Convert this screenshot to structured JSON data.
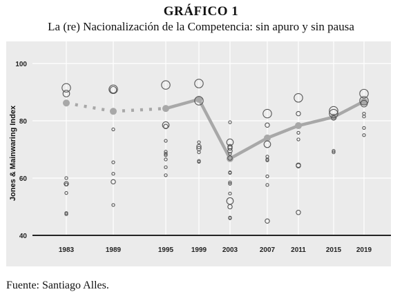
{
  "figure": {
    "title": "GRÁFICO 1",
    "subtitle": "La (re) Nacionalización de la Competencia: sin apuro y sin pausa",
    "source": "Fuente: Santiago Alles."
  },
  "chart_data": {
    "type": "scatter",
    "ylabel": "Jones & Mainwaring Index",
    "xlabel": "",
    "categories": [
      "1983",
      "1989",
      "1995",
      "1999",
      "2003",
      "2007",
      "2011",
      "2015",
      "2019"
    ],
    "ylim": [
      40,
      105
    ],
    "yticks": [
      40,
      60,
      80,
      100
    ],
    "grid": true,
    "colors": {
      "panel": "#ebebeb",
      "grid": "#ffffff",
      "trend": "#a8a8a8",
      "points": "#555555"
    },
    "trend": {
      "values": [
        86.2,
        83.3,
        84.3,
        87.5,
        66.8,
        74.0,
        78.3,
        81.3,
        86.8
      ],
      "dotted_segments": [
        [
          0,
          1
        ],
        [
          1,
          2
        ]
      ]
    },
    "points": [
      {
        "x": "1983",
        "y": 91.5,
        "size": "large"
      },
      {
        "x": "1983",
        "y": 89.5,
        "size": "medium"
      },
      {
        "x": "1983",
        "y": 60.0,
        "size": "tiny"
      },
      {
        "x": "1983",
        "y": 58.0,
        "size": "small"
      },
      {
        "x": "1983",
        "y": 57.8,
        "size": "tiny"
      },
      {
        "x": "1983",
        "y": 54.8,
        "size": "tiny"
      },
      {
        "x": "1983",
        "y": 47.8,
        "size": "tiny"
      },
      {
        "x": "1983",
        "y": 47.4,
        "size": "tiny"
      },
      {
        "x": "1989",
        "y": 91.0,
        "size": "large"
      },
      {
        "x": "1989",
        "y": 90.8,
        "size": "medium"
      },
      {
        "x": "1989",
        "y": 77.0,
        "size": "tiny"
      },
      {
        "x": "1989",
        "y": 65.5,
        "size": "tiny"
      },
      {
        "x": "1989",
        "y": 61.5,
        "size": "tiny"
      },
      {
        "x": "1989",
        "y": 58.7,
        "size": "small"
      },
      {
        "x": "1989",
        "y": 50.6,
        "size": "tiny"
      },
      {
        "x": "1995",
        "y": 92.5,
        "size": "large"
      },
      {
        "x": "1995",
        "y": 78.5,
        "size": "medium"
      },
      {
        "x": "1995",
        "y": 78.0,
        "size": "small"
      },
      {
        "x": "1995",
        "y": 73.0,
        "size": "tiny"
      },
      {
        "x": "1995",
        "y": 69.2,
        "size": "tiny"
      },
      {
        "x": "1995",
        "y": 68.5,
        "size": "tiny"
      },
      {
        "x": "1995",
        "y": 68.0,
        "size": "tiny"
      },
      {
        "x": "1995",
        "y": 66.5,
        "size": "tiny"
      },
      {
        "x": "1995",
        "y": 63.8,
        "size": "tiny"
      },
      {
        "x": "1995",
        "y": 61.0,
        "size": "tiny"
      },
      {
        "x": "1999",
        "y": 93.0,
        "size": "large"
      },
      {
        "x": "1999",
        "y": 87.0,
        "size": "large"
      },
      {
        "x": "1999",
        "y": 72.5,
        "size": "tiny"
      },
      {
        "x": "1999",
        "y": 71.0,
        "size": "small"
      },
      {
        "x": "1999",
        "y": 70.3,
        "size": "small"
      },
      {
        "x": "1999",
        "y": 69.0,
        "size": "tiny"
      },
      {
        "x": "1999",
        "y": 66.0,
        "size": "tiny"
      },
      {
        "x": "1999",
        "y": 65.7,
        "size": "tiny"
      },
      {
        "x": "2003",
        "y": 79.5,
        "size": "tiny"
      },
      {
        "x": "2003",
        "y": 72.5,
        "size": "medium"
      },
      {
        "x": "2003",
        "y": 71.0,
        "size": "small"
      },
      {
        "x": "2003",
        "y": 70.5,
        "size": "small"
      },
      {
        "x": "2003",
        "y": 69.5,
        "size": "small"
      },
      {
        "x": "2003",
        "y": 68.5,
        "size": "tiny"
      },
      {
        "x": "2003",
        "y": 67.0,
        "size": "small"
      },
      {
        "x": "2003",
        "y": 62.0,
        "size": "tiny"
      },
      {
        "x": "2003",
        "y": 61.8,
        "size": "tiny"
      },
      {
        "x": "2003",
        "y": 58.5,
        "size": "tiny"
      },
      {
        "x": "2003",
        "y": 58.0,
        "size": "tiny"
      },
      {
        "x": "2003",
        "y": 54.6,
        "size": "tiny"
      },
      {
        "x": "2003",
        "y": 52.0,
        "size": "medium"
      },
      {
        "x": "2003",
        "y": 50.0,
        "size": "small"
      },
      {
        "x": "2003",
        "y": 46.2,
        "size": "tiny"
      },
      {
        "x": "2003",
        "y": 46.0,
        "size": "tiny"
      },
      {
        "x": "2007",
        "y": 82.5,
        "size": "large"
      },
      {
        "x": "2007",
        "y": 78.5,
        "size": "small"
      },
      {
        "x": "2007",
        "y": 71.8,
        "size": "medium"
      },
      {
        "x": "2007",
        "y": 67.5,
        "size": "tiny"
      },
      {
        "x": "2007",
        "y": 66.5,
        "size": "tiny"
      },
      {
        "x": "2007",
        "y": 66.2,
        "size": "tiny"
      },
      {
        "x": "2007",
        "y": 60.6,
        "size": "tiny"
      },
      {
        "x": "2007",
        "y": 57.6,
        "size": "tiny"
      },
      {
        "x": "2007",
        "y": 45.0,
        "size": "small"
      },
      {
        "x": "2011",
        "y": 88.0,
        "size": "large"
      },
      {
        "x": "2011",
        "y": 82.5,
        "size": "small"
      },
      {
        "x": "2011",
        "y": 75.8,
        "size": "tiny"
      },
      {
        "x": "2011",
        "y": 73.5,
        "size": "tiny"
      },
      {
        "x": "2011",
        "y": 64.5,
        "size": "small"
      },
      {
        "x": "2011",
        "y": 64.3,
        "size": "small"
      },
      {
        "x": "2011",
        "y": 48.0,
        "size": "small"
      },
      {
        "x": "2015",
        "y": 83.5,
        "size": "large"
      },
      {
        "x": "2015",
        "y": 82.5,
        "size": "large"
      },
      {
        "x": "2015",
        "y": 81.0,
        "size": "small"
      },
      {
        "x": "2015",
        "y": 69.5,
        "size": "tiny"
      },
      {
        "x": "2015",
        "y": 69.0,
        "size": "tiny"
      },
      {
        "x": "2019",
        "y": 89.5,
        "size": "large"
      },
      {
        "x": "2019",
        "y": 87.0,
        "size": "large"
      },
      {
        "x": "2019",
        "y": 86.0,
        "size": "medium"
      },
      {
        "x": "2019",
        "y": 82.5,
        "size": "tiny"
      },
      {
        "x": "2019",
        "y": 81.5,
        "size": "tiny"
      },
      {
        "x": "2019",
        "y": 77.5,
        "size": "tiny"
      },
      {
        "x": "2019",
        "y": 75.0,
        "size": "tiny"
      }
    ]
  }
}
